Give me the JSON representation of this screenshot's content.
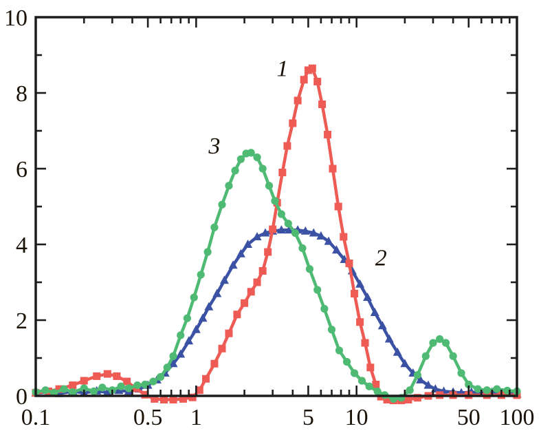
{
  "figure": {
    "background": "#ffffff",
    "frame_color": "#1d1d1d",
    "text_color": "#1b1207"
  },
  "chart_data": {
    "type": "line",
    "title": "",
    "xlabel": "",
    "ylabel": "",
    "x_scale": "log",
    "x_range": [
      0.1,
      100
    ],
    "y_range": [
      0,
      10
    ],
    "grid": false,
    "legend_position": "none",
    "x_major_ticks": [
      0.1,
      0.5,
      1,
      5,
      10,
      50,
      100
    ],
    "x_major_tick_labels": [
      "0.1",
      "0.5",
      "1",
      "5",
      "10",
      "50",
      "100"
    ],
    "x_minor_ticks": [
      0.2,
      0.3,
      0.4,
      0.6,
      0.7,
      0.8,
      0.9,
      2,
      3,
      4,
      6,
      7,
      8,
      9,
      20,
      30,
      40,
      60,
      70,
      80,
      90
    ],
    "y_major_ticks": [
      0,
      2,
      4,
      6,
      8,
      10
    ],
    "y_major_tick_labels": [
      "0",
      "2",
      "4",
      "6",
      "8",
      "10"
    ],
    "y_minor_ticks": [
      1,
      3,
      5,
      7,
      9
    ],
    "series": [
      {
        "name": "1",
        "marker": "square",
        "color": "#ee5a54",
        "z": 2,
        "x": [
          0.1,
          0.12,
          0.14,
          0.17,
          0.2,
          0.24,
          0.28,
          0.32,
          0.37,
          0.42,
          0.48,
          0.55,
          0.63,
          0.72,
          0.83,
          0.95,
          1.05,
          1.15,
          1.3,
          1.45,
          1.6,
          1.8,
          2.0,
          2.2,
          2.4,
          2.6,
          2.8,
          3.0,
          3.2,
          3.45,
          3.7,
          4.0,
          4.3,
          4.7,
          5.0,
          5.3,
          5.7,
          6.1,
          6.6,
          7.1,
          7.7,
          8.3,
          9.0,
          9.7,
          10.5,
          11.3,
          12.2,
          13.2,
          14.2,
          15.5,
          17,
          19,
          21,
          24,
          28,
          33,
          40,
          50,
          65,
          80,
          100
        ],
        "y": [
          0.08,
          0.12,
          0.18,
          0.28,
          0.4,
          0.52,
          0.58,
          0.52,
          0.38,
          0.2,
          0.03,
          -0.08,
          -0.1,
          -0.1,
          -0.08,
          -0.04,
          0.15,
          0.45,
          0.85,
          1.25,
          1.65,
          2.15,
          2.45,
          2.75,
          3.0,
          3.3,
          3.8,
          4.4,
          5.1,
          5.9,
          6.6,
          7.2,
          7.8,
          8.35,
          8.6,
          8.65,
          8.3,
          7.7,
          6.9,
          6.0,
          5.0,
          4.2,
          3.5,
          2.7,
          1.95,
          1.4,
          0.75,
          0.3,
          -0.02,
          -0.1,
          -0.12,
          -0.12,
          -0.1,
          -0.05,
          0.0,
          0.02,
          0.02,
          0.02,
          0.02,
          0.02,
          0.02
        ]
      },
      {
        "name": "2",
        "marker": "triangle",
        "color": "#3b51a3",
        "z": 1,
        "x": [
          0.1,
          0.12,
          0.14,
          0.17,
          0.2,
          0.24,
          0.28,
          0.33,
          0.38,
          0.44,
          0.5,
          0.57,
          0.64,
          0.72,
          0.8,
          0.9,
          1.0,
          1.1,
          1.2,
          1.35,
          1.5,
          1.7,
          1.9,
          2.1,
          2.4,
          2.7,
          3.0,
          3.4,
          3.8,
          4.3,
          4.8,
          5.4,
          6.0,
          6.7,
          7.5,
          8.4,
          9.4,
          10.5,
          11.7,
          13,
          14.5,
          16,
          18,
          20,
          22.5,
          25,
          28,
          31,
          35,
          40,
          45,
          52,
          60,
          70,
          82,
          100
        ],
        "y": [
          0.07,
          0.1,
          0.06,
          0.12,
          0.08,
          0.13,
          0.09,
          0.14,
          0.12,
          0.18,
          0.28,
          0.42,
          0.6,
          0.85,
          1.1,
          1.45,
          1.75,
          2.05,
          2.35,
          2.7,
          3.05,
          3.45,
          3.75,
          4.0,
          4.2,
          4.3,
          4.35,
          4.38,
          4.38,
          4.38,
          4.35,
          4.3,
          4.22,
          4.08,
          3.85,
          3.6,
          3.3,
          2.95,
          2.6,
          2.2,
          1.85,
          1.5,
          1.15,
          0.85,
          0.6,
          0.42,
          0.28,
          0.18,
          0.12,
          0.1,
          0.08,
          0.1,
          0.07,
          0.1,
          0.08,
          0.05
        ]
      },
      {
        "name": "3",
        "marker": "circle",
        "color": "#4fba74",
        "z": 3,
        "x": [
          0.1,
          0.115,
          0.13,
          0.15,
          0.17,
          0.2,
          0.23,
          0.26,
          0.3,
          0.34,
          0.38,
          0.43,
          0.48,
          0.54,
          0.6,
          0.66,
          0.72,
          0.8,
          0.88,
          0.97,
          1.07,
          1.18,
          1.3,
          1.45,
          1.6,
          1.75,
          1.9,
          2.05,
          2.2,
          2.4,
          2.6,
          2.85,
          3.1,
          3.4,
          3.75,
          4.15,
          4.6,
          5.1,
          5.7,
          6.3,
          7.0,
          7.8,
          8.7,
          9.7,
          10.8,
          12,
          13.5,
          15,
          17,
          19,
          21.5,
          24,
          27,
          30,
          33,
          36,
          40,
          45,
          50,
          57,
          65,
          75,
          87,
          100
        ],
        "y": [
          0.1,
          0.15,
          0.08,
          0.18,
          0.1,
          0.2,
          0.12,
          0.22,
          0.15,
          0.25,
          0.2,
          0.28,
          0.3,
          0.38,
          0.5,
          0.75,
          1.05,
          1.6,
          2.05,
          2.6,
          3.2,
          3.8,
          4.45,
          5.05,
          5.55,
          5.95,
          6.25,
          6.4,
          6.42,
          6.3,
          6.0,
          5.55,
          5.15,
          4.8,
          4.55,
          4.3,
          3.9,
          3.35,
          2.8,
          2.3,
          1.75,
          1.2,
          0.9,
          0.6,
          0.4,
          0.25,
          0.12,
          0.02,
          -0.08,
          -0.05,
          0.15,
          0.55,
          1.05,
          1.4,
          1.5,
          1.4,
          1.05,
          0.6,
          0.3,
          0.18,
          0.15,
          0.18,
          0.14,
          0.12
        ]
      }
    ],
    "annotations": [
      {
        "text": "1",
        "x": 3.45,
        "y": 8.45
      },
      {
        "text": "2",
        "x": 14.2,
        "y": 3.45
      },
      {
        "text": "3",
        "x": 1.3,
        "y": 6.4
      }
    ]
  }
}
